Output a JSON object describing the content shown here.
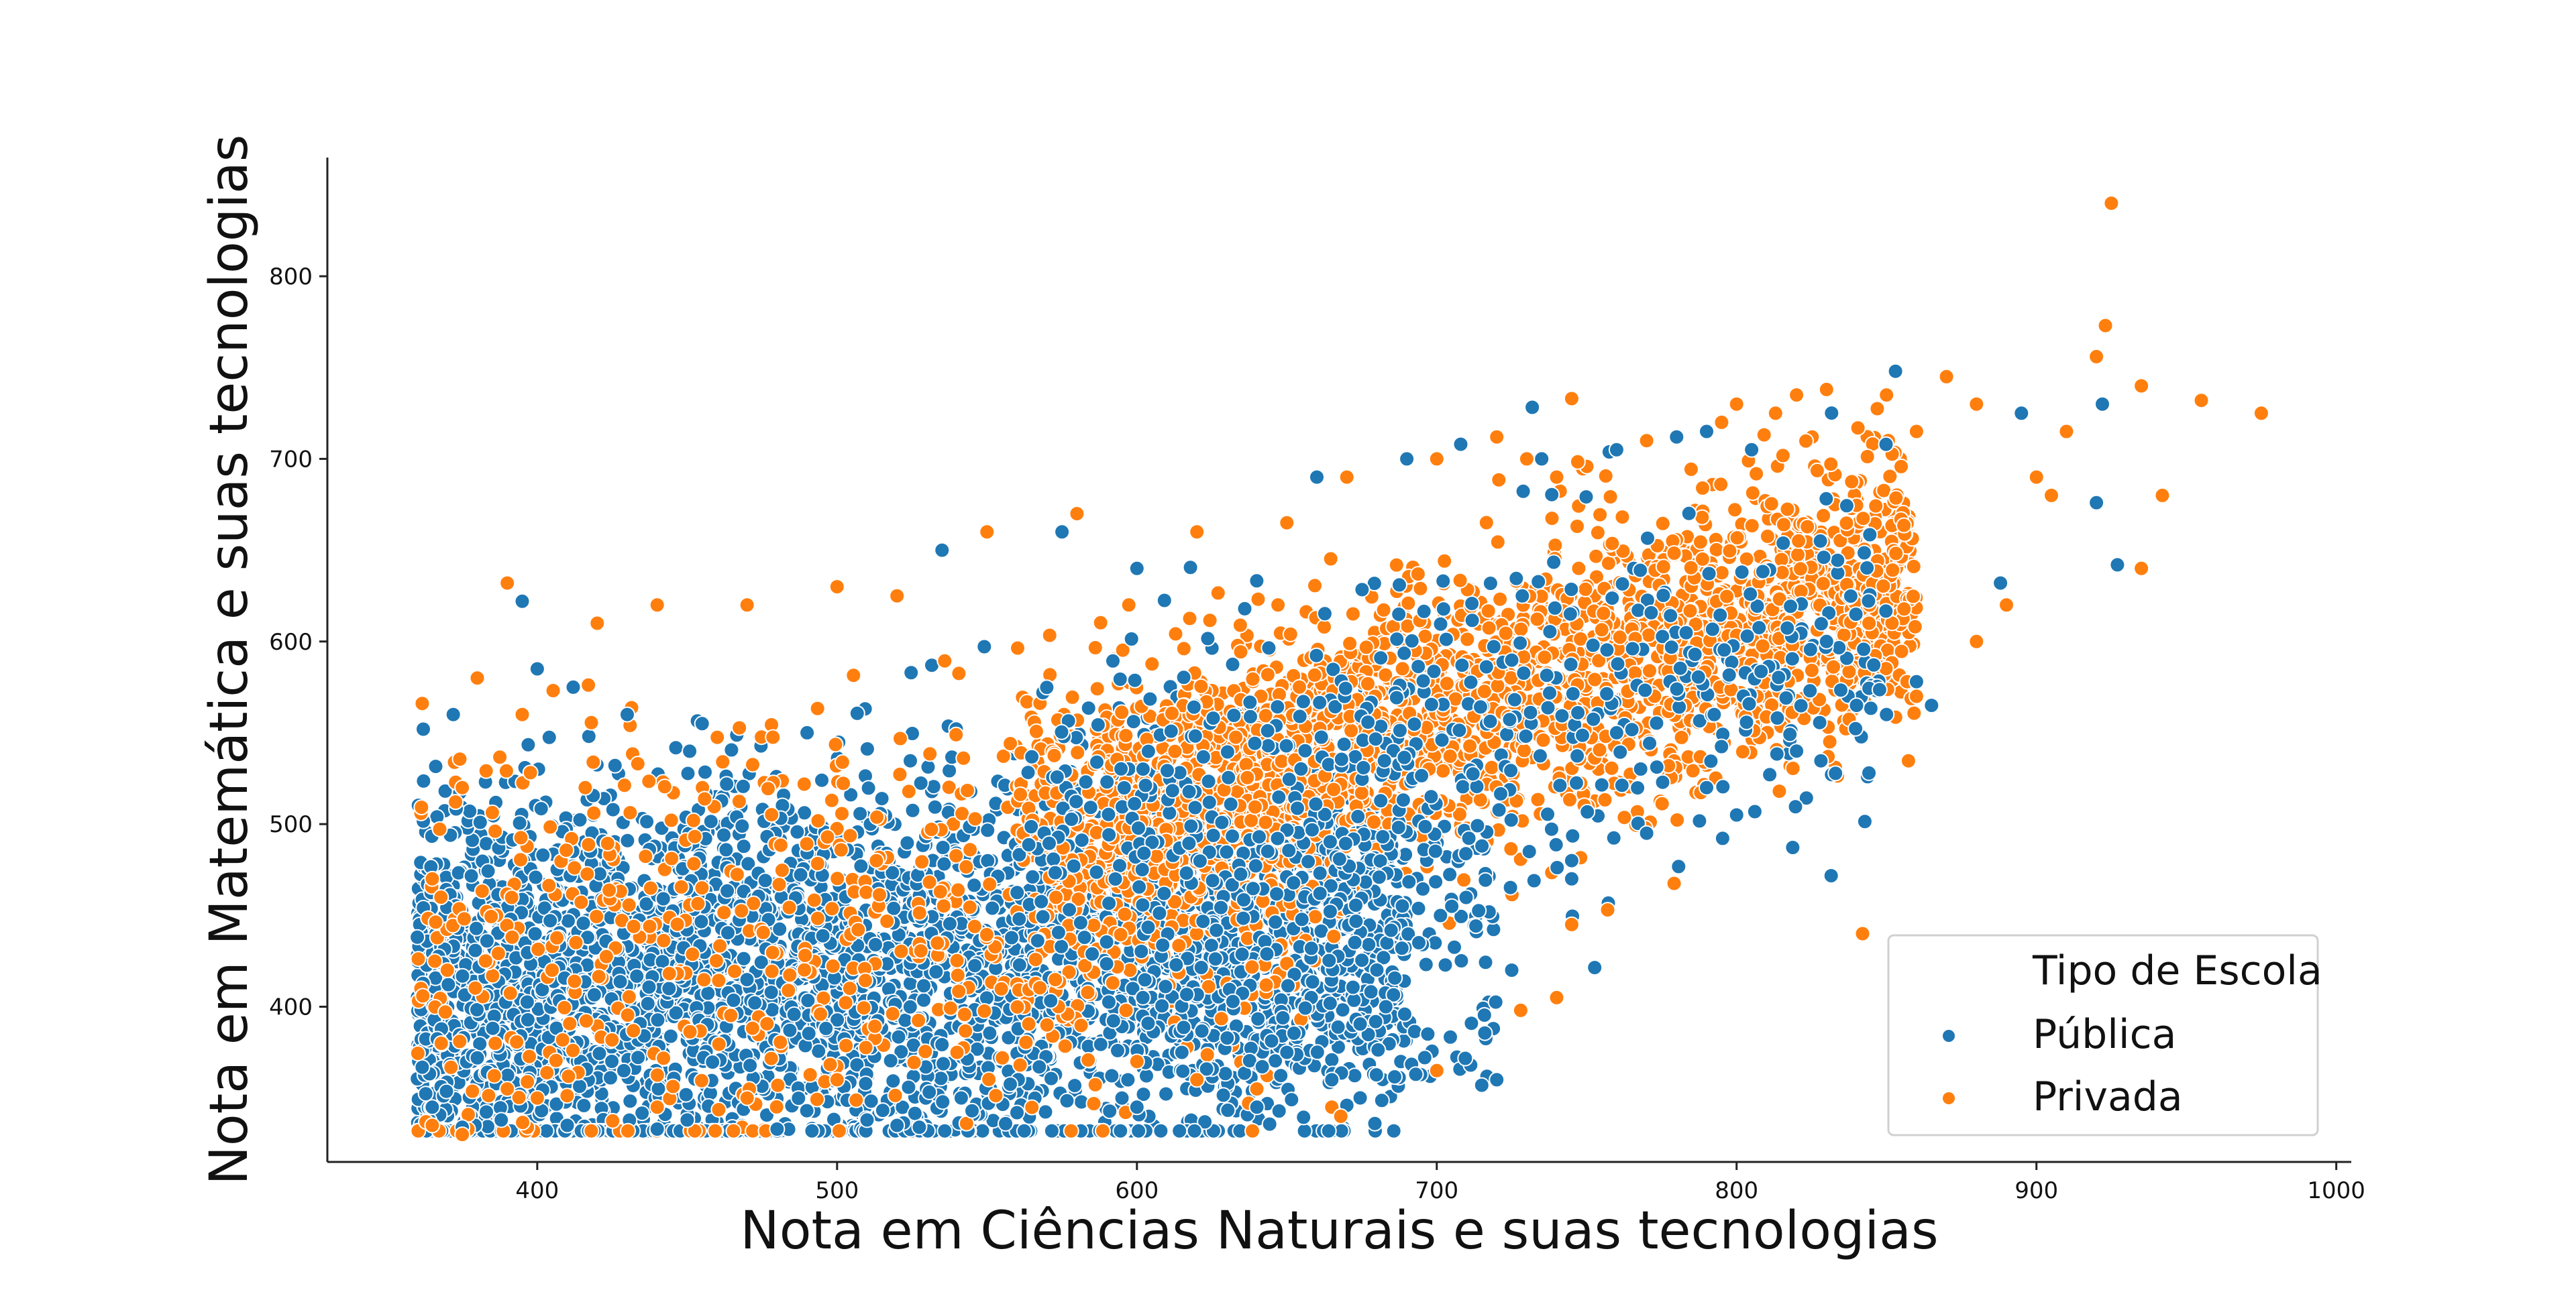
{
  "chart_data": {
    "type": "scatter",
    "xlabel": "Nota em Ciências Naturais e suas tecnologias",
    "ylabel": "Nota em Matemática e suas tecnologias",
    "xlim": [
      330,
      1005
    ],
    "ylim": [
      315,
      865
    ],
    "xticks": [
      400,
      500,
      600,
      700,
      800,
      900,
      1000
    ],
    "yticks": [
      400,
      500,
      600,
      700,
      800
    ],
    "grid": false,
    "legend": {
      "title": "Tipo de Escola",
      "placement": "lower-right",
      "entries": [
        {
          "name": "Pública",
          "color": "#1f77b4"
        },
        {
          "name": "Privada",
          "color": "#ff7f0e"
        }
      ]
    },
    "series": [
      {
        "name": "Pública",
        "color": "#1f77b4",
        "points": [
          [
            362,
            552
          ],
          [
            372,
            560
          ],
          [
            395,
            622
          ],
          [
            400,
            585
          ],
          [
            412,
            575
          ],
          [
            430,
            560
          ],
          [
            455,
            555
          ],
          [
            490,
            550
          ],
          [
            535,
            650
          ],
          [
            575,
            660
          ],
          [
            600,
            640
          ],
          [
            660,
            690
          ],
          [
            690,
            700
          ],
          [
            708,
            708
          ],
          [
            735,
            700
          ],
          [
            760,
            705
          ],
          [
            780,
            712
          ],
          [
            790,
            715
          ],
          [
            805,
            705
          ],
          [
            853,
            748
          ],
          [
            895,
            725
          ],
          [
            922,
            730
          ],
          [
            927,
            642
          ],
          [
            920,
            676
          ],
          [
            888,
            632
          ],
          [
            865,
            565
          ],
          [
            850,
            560
          ],
          [
            860,
            578
          ],
          [
            800,
            505
          ],
          [
            790,
            520
          ],
          [
            770,
            495
          ],
          [
            745,
            480
          ],
          [
            745,
            470
          ],
          [
            725,
            420
          ],
          [
            720,
            360
          ],
          [
            715,
            357
          ],
          [
            697,
            385
          ],
          [
            693,
            363
          ],
          [
            670,
            346
          ],
          [
            665,
            360
          ],
          [
            640,
            345
          ],
          [
            600,
            345
          ],
          [
            560,
            342
          ],
          [
            520,
            335
          ],
          [
            480,
            333
          ],
          [
            440,
            333
          ],
          [
            410,
            335
          ],
          [
            375,
            334
          ],
          [
            380,
            372
          ],
          [
            388,
            338
          ],
          [
            365,
            345
          ],
          [
            450,
            338
          ],
          [
            510,
            338
          ],
          [
            545,
            343
          ],
          [
            595,
            350
          ],
          [
            615,
            375
          ],
          [
            650,
            375
          ],
          [
            683,
            400
          ],
          [
            705,
            455
          ],
          [
            760,
            550
          ],
          [
            820,
            540
          ],
          [
            840,
            565
          ],
          [
            830,
            600
          ]
        ]
      },
      {
        "name": "Privada",
        "color": "#ff7f0e",
        "points": [
          [
            925,
            840
          ],
          [
            923,
            773
          ],
          [
            920,
            756
          ],
          [
            955,
            732
          ],
          [
            975,
            725
          ],
          [
            935,
            740
          ],
          [
            942,
            680
          ],
          [
            935,
            640
          ],
          [
            900,
            690
          ],
          [
            910,
            715
          ],
          [
            870,
            745
          ],
          [
            880,
            730
          ],
          [
            860,
            715
          ],
          [
            850,
            735
          ],
          [
            830,
            738
          ],
          [
            820,
            735
          ],
          [
            813,
            725
          ],
          [
            800,
            730
          ],
          [
            795,
            720
          ],
          [
            770,
            710
          ],
          [
            745,
            733
          ],
          [
            720,
            712
          ],
          [
            730,
            700
          ],
          [
            740,
            690
          ],
          [
            700,
            700
          ],
          [
            670,
            690
          ],
          [
            650,
            665
          ],
          [
            620,
            660
          ],
          [
            580,
            670
          ],
          [
            550,
            660
          ],
          [
            520,
            625
          ],
          [
            500,
            630
          ],
          [
            470,
            620
          ],
          [
            440,
            620
          ],
          [
            420,
            610
          ],
          [
            390,
            632
          ],
          [
            380,
            580
          ],
          [
            395,
            560
          ],
          [
            375,
            520
          ],
          [
            365,
            470
          ],
          [
            370,
            420
          ],
          [
            368,
            380
          ],
          [
            375,
            330
          ],
          [
            390,
            355
          ],
          [
            400,
            350
          ],
          [
            440,
            345
          ],
          [
            470,
            350
          ],
          [
            500,
            360
          ],
          [
            540,
            375
          ],
          [
            570,
            390
          ],
          [
            600,
            370
          ],
          [
            620,
            360
          ],
          [
            640,
            355
          ],
          [
            665,
            345
          ],
          [
            668,
            340
          ],
          [
            700,
            365
          ],
          [
            728,
            398
          ],
          [
            740,
            405
          ],
          [
            757,
            453
          ],
          [
            745,
            445
          ],
          [
            842,
            440
          ],
          [
            860,
            570
          ],
          [
            880,
            600
          ],
          [
            890,
            620
          ],
          [
            905,
            680
          ]
        ]
      }
    ]
  }
}
